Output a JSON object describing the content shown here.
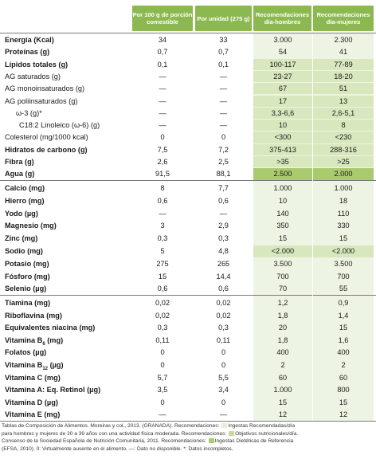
{
  "headers": {
    "per100": "Por 100 g de porción comestible",
    "perunit": "Por unidad (275 g)",
    "men": "Recomendaciones día-hombres",
    "women": "Recomendaciones día-mujeres"
  },
  "group1": [
    {
      "label": "Energía (Kcal)",
      "bold": true,
      "a": "34",
      "b": "33",
      "c": "3.000",
      "d": "2.300"
    },
    {
      "label": "Proteínas (g)",
      "bold": true,
      "a": "0,7",
      "b": "0,7",
      "c": "54",
      "d": "41"
    },
    {
      "label": "Lípidos totales (g)",
      "bold": true,
      "a": "0,1",
      "b": "0,1",
      "c": "100-117",
      "d": "77-89",
      "hl": "light"
    },
    {
      "label": "AG saturados (g)",
      "bold": false,
      "a": "—",
      "b": "—",
      "c": "23-27",
      "d": "18-20",
      "hl": "light"
    },
    {
      "label": "AG monoinsaturados (g)",
      "bold": false,
      "a": "—",
      "b": "—",
      "c": "67",
      "d": "51",
      "hl": "light"
    },
    {
      "label": "AG poliinsaturados (g)",
      "bold": false,
      "a": "—",
      "b": "—",
      "c": "17",
      "d": "13",
      "hl": "light"
    },
    {
      "label": "ω-3 (g)*",
      "bold": false,
      "indent": 2,
      "a": "—",
      "b": "—",
      "c": "3,3-6,6",
      "d": "2,6-5,1",
      "hl": "light"
    },
    {
      "label": "C18:2 Linoleico (ω-6) (g)",
      "bold": false,
      "indent": 3,
      "a": "—",
      "b": "—",
      "c": "10",
      "d": "8",
      "hl": "light"
    },
    {
      "label": "Colesterol (mg/1000 kcal)",
      "bold": false,
      "a": "0",
      "b": "0",
      "c": "<300",
      "d": "<230",
      "hl": "light"
    },
    {
      "label": "Hidratos de carbono (g)",
      "bold": true,
      "a": "7,5",
      "b": "7,2",
      "c": "375-413",
      "d": "288-316",
      "hl": "light"
    },
    {
      "label": "Fibra (g)",
      "bold": true,
      "a": "2,6",
      "b": "2,5",
      "c": ">35",
      "d": ">25",
      "hl": "light"
    },
    {
      "label": "Agua (g)",
      "bold": true,
      "a": "91,5",
      "b": "88,1",
      "c": "2.500",
      "d": "2.000",
      "hl": "dark"
    }
  ],
  "group2": [
    {
      "label": "Calcio (mg)",
      "bold": true,
      "a": "8",
      "b": "7,7",
      "c": "1.000",
      "d": "1.000"
    },
    {
      "label": "Hierro (mg)",
      "bold": true,
      "a": "0,6",
      "b": "0,6",
      "c": "10",
      "d": "18"
    },
    {
      "label": "Yodo (µg)",
      "bold": true,
      "a": "—",
      "b": "—",
      "c": "140",
      "d": "110"
    },
    {
      "label": "Magnesio (mg)",
      "bold": true,
      "a": "3",
      "b": "2,9",
      "c": "350",
      "d": "330"
    },
    {
      "label": "Zinc (mg)",
      "bold": true,
      "a": "0,3",
      "b": "0,3",
      "c": "15",
      "d": "15"
    },
    {
      "label": "Sodio (mg)",
      "bold": true,
      "a": "5",
      "b": "4,8",
      "c": "<2.000",
      "d": "<2.000",
      "hl": "light"
    },
    {
      "label": "Potasio (mg)",
      "bold": true,
      "a": "275",
      "b": "265",
      "c": "3.500",
      "d": "3.500"
    },
    {
      "label": "Fósforo (mg)",
      "bold": true,
      "a": "15",
      "b": "14,4",
      "c": "700",
      "d": "700"
    },
    {
      "label": "Selenio (µg)",
      "bold": true,
      "a": "0,6",
      "b": "0,6",
      "c": "70",
      "d": "55"
    }
  ],
  "group3": [
    {
      "label": "Tiamina (mg)",
      "bold": true,
      "a": "0,02",
      "b": "0,02",
      "c": "1,2",
      "d": "0,9"
    },
    {
      "label": "Riboflavina (mg)",
      "bold": true,
      "a": "0,02",
      "b": "0,02",
      "c": "1,8",
      "d": "1,4"
    },
    {
      "label": "Equivalentes niacina (mg)",
      "bold": true,
      "a": "0,3",
      "b": "0,3",
      "c": "20",
      "d": "15"
    },
    {
      "label": "Vitamina B6 (mg)",
      "bold": true,
      "a": "0,11",
      "b": "0,11",
      "c": "1,8",
      "d": "1,6"
    },
    {
      "label": "Folatos (µg)",
      "bold": true,
      "a": "0",
      "b": "0",
      "c": "400",
      "d": "400"
    },
    {
      "label": "Vitamina B12 (µg)",
      "bold": true,
      "a": "0",
      "b": "0",
      "c": "2",
      "d": "2"
    },
    {
      "label": "Vitamina C (mg)",
      "bold": true,
      "a": "5,7",
      "b": "5,5",
      "c": "60",
      "d": "60"
    },
    {
      "label": "Vitamina A: Eq. Retinol (µg)",
      "bold": true,
      "a": "3,5",
      "b": "3,4",
      "c": "1.000",
      "d": "800"
    },
    {
      "label": "Vitamina D (µg)",
      "bold": true,
      "a": "0",
      "b": "0",
      "c": "15",
      "d": "15"
    },
    {
      "label": "Vitamina E (mg)",
      "bold": true,
      "a": "—",
      "b": "—",
      "c": "12",
      "d": "12"
    }
  ],
  "footer": {
    "line1": "Tablas de Composición de Alimentos. Moreiras y col., 2013. (GRANADA). Recomendaciones:",
    "line1b": "Ingestas Recomendadas/día",
    "line2": "para hombres y mujeres de 20 a 39 años con una actividad física moderada. Recomendaciones:",
    "line2b": "Objetivos nutricionales/día.",
    "line3": "Consenso de la Sociedad Española de Nutrición Comunitaria, 2011. Recomendaciones:",
    "line3b": "Ingestas Dietéticas de Referencia",
    "line4": "(EFSA, 2010). 0: Virtualmente ausente en el alimento. —: Dato no disponible. *: Datos incompletos.",
    "colors": {
      "light": "#e4eed3",
      "mid": "#c6dc9f",
      "dark": "#a9cb6e"
    }
  }
}
